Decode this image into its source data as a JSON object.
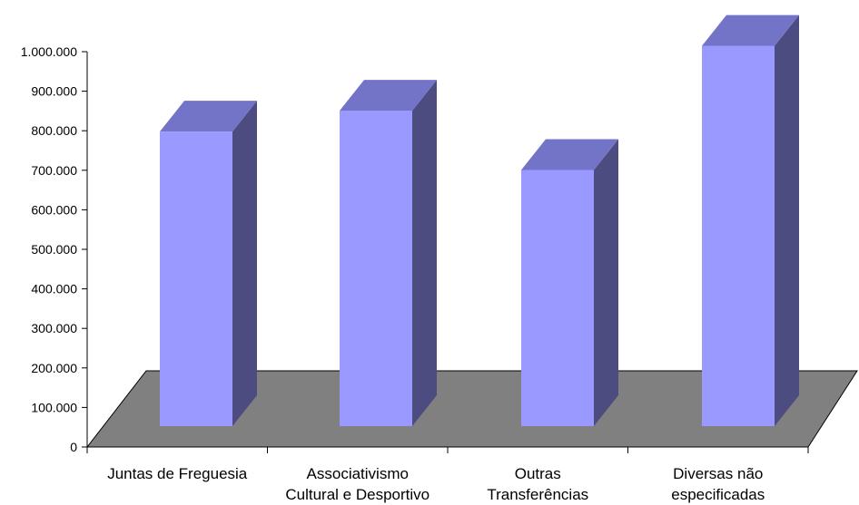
{
  "chart_data": {
    "type": "bar",
    "title": "",
    "xlabel": "",
    "ylabel": "",
    "ylim": [
      0,
      1000000
    ],
    "y_ticks": [
      0,
      100000,
      200000,
      300000,
      400000,
      500000,
      600000,
      700000,
      800000,
      900000,
      1000000
    ],
    "y_tick_labels": [
      "0",
      "100.000",
      "200.000",
      "300.000",
      "400.000",
      "500.000",
      "600.000",
      "700.000",
      "800.000",
      "900.000",
      "1.000.000"
    ],
    "categories": [
      [
        "Juntas de Freguesia"
      ],
      [
        "Associativismo",
        "Cultural e Desportivo"
      ],
      [
        "Outras",
        "Transferências"
      ],
      [
        "Diversas não",
        "especificadas"
      ]
    ],
    "values": [
      745000,
      798000,
      648000,
      962000
    ],
    "style": "3d-column",
    "grid": false,
    "legend": "none"
  },
  "colors": {
    "bar_front": "#9999ff",
    "bar_top": "#7373c7",
    "bar_side": "#4c4c80",
    "floor": "#808080",
    "axis": "#000000",
    "background": "#ffffff"
  }
}
